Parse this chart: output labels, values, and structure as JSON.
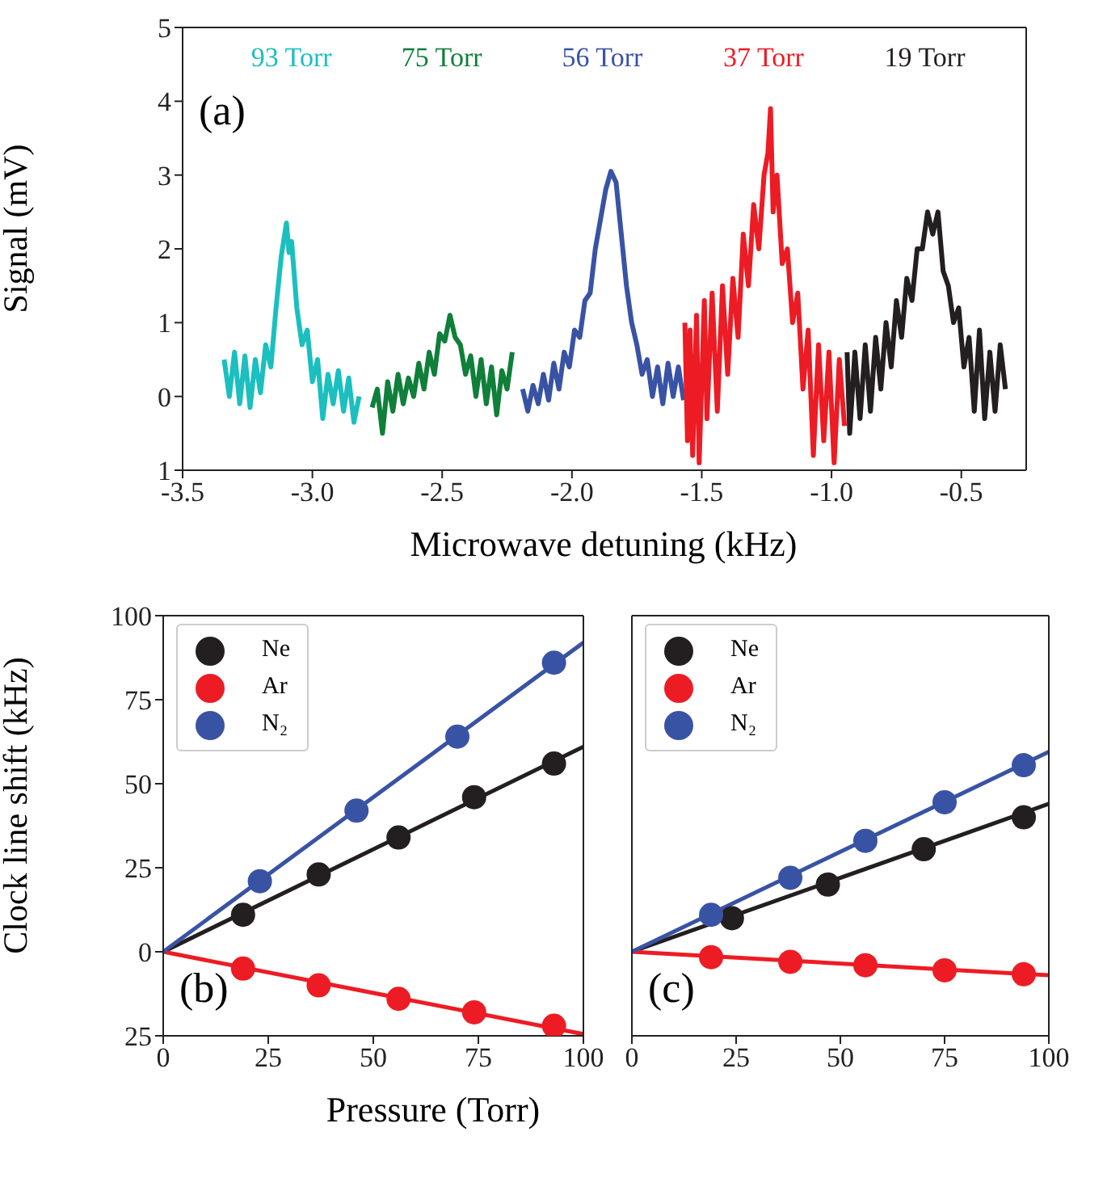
{
  "chart_data": [
    {
      "type": "line",
      "xlabel": "Microwave detuning (kHz)",
      "ylabel": "Signal (mV)",
      "annotations": [
        "(a)"
      ],
      "xlim": [
        -3.5,
        -0.25
      ],
      "xticks": [
        -3.5,
        {
          "value": -3,
          "label": "-3.0"
        },
        -2.5,
        {
          "value": -2,
          "label": "-2.0"
        },
        -1.5,
        {
          "value": -1,
          "label": "-1.0"
        },
        -0.5
      ],
      "ylim": [
        -1,
        5
      ],
      "yticks": [
        {
          "value": -1,
          "label": "1"
        },
        0,
        1,
        2,
        3,
        4,
        5
      ],
      "series": [
        {
          "name": "93 Torr",
          "color": "#1bbfbf",
          "x": [
            -3.34,
            -3.32,
            -3.3,
            -3.28,
            -3.26,
            -3.24,
            -3.22,
            -3.2,
            -3.18,
            -3.16,
            -3.14,
            -3.12,
            -3.1,
            -3.09,
            -3.08,
            -3.06,
            -3.04,
            -3.02,
            -3,
            -2.98,
            -2.96,
            -2.94,
            -2.92,
            -2.9,
            -2.88,
            -2.86,
            -2.84,
            -2.82
          ],
          "values": [
            0.5,
            0,
            0.6,
            -0.1,
            0.55,
            -0.15,
            0.5,
            0.05,
            0.7,
            0.4,
            1.2,
            1.9,
            2.35,
            1.95,
            2.1,
            1.2,
            0.7,
            0.9,
            0.2,
            0.5,
            -0.3,
            0.3,
            -0.1,
            0.35,
            -0.2,
            0.25,
            -0.35,
            0
          ]
        },
        {
          "name": "75 Torr",
          "color": "#0f7f3a",
          "x": [
            -2.77,
            -2.75,
            -2.73,
            -2.71,
            -2.69,
            -2.67,
            -2.65,
            -2.63,
            -2.61,
            -2.59,
            -2.57,
            -2.55,
            -2.53,
            -2.51,
            -2.49,
            -2.47,
            -2.45,
            -2.43,
            -2.41,
            -2.39,
            -2.37,
            -2.35,
            -2.33,
            -2.31,
            -2.29,
            -2.27,
            -2.25,
            -2.23
          ],
          "values": [
            -0.15,
            0.1,
            -0.5,
            0.2,
            -0.2,
            0.3,
            -0.1,
            0.25,
            0,
            0.45,
            0.1,
            0.6,
            0.3,
            0.85,
            0.75,
            1.1,
            0.8,
            0.7,
            0.3,
            0.55,
            0,
            0.5,
            -0.1,
            0.4,
            -0.25,
            0.35,
            0.1,
            0.6
          ]
        },
        {
          "name": "56 Torr",
          "color": "#3953a4",
          "x": [
            -2.19,
            -2.17,
            -2.15,
            -2.13,
            -2.11,
            -2.09,
            -2.07,
            -2.05,
            -2.03,
            -2.01,
            -1.99,
            -1.97,
            -1.95,
            -1.93,
            -1.91,
            -1.89,
            -1.87,
            -1.85,
            -1.83,
            -1.81,
            -1.79,
            -1.77,
            -1.75,
            -1.73,
            -1.71,
            -1.69,
            -1.67,
            -1.65,
            -1.63,
            -1.61,
            -1.59,
            -1.57
          ],
          "values": [
            0.1,
            -0.2,
            0.15,
            -0.1,
            0.3,
            -0.05,
            0.45,
            0.1,
            0.6,
            0.4,
            0.9,
            0.8,
            1.3,
            1.4,
            2,
            2.4,
            2.8,
            3.05,
            2.9,
            2.2,
            1.5,
            1,
            0.7,
            0.3,
            0.5,
            0,
            0.4,
            -0.1,
            0.45,
            0,
            0.4,
            -0.05
          ]
        },
        {
          "name": "37 Torr",
          "color": "#ed1c24",
          "x": [
            -1.565,
            -1.555,
            -1.545,
            -1.535,
            -1.52,
            -1.51,
            -1.49,
            -1.48,
            -1.46,
            -1.44,
            -1.42,
            -1.4,
            -1.38,
            -1.36,
            -1.34,
            -1.32,
            -1.3,
            -1.28,
            -1.26,
            -1.245,
            -1.235,
            -1.225,
            -1.21,
            -1.19,
            -1.17,
            -1.15,
            -1.13,
            -1.11,
            -1.09,
            -1.07,
            -1.05,
            -1.03,
            -1.01,
            -0.99,
            -0.97,
            -0.95
          ],
          "values": [
            1,
            -0.6,
            0.9,
            -0.8,
            1.1,
            -0.9,
            1.3,
            -0.3,
            1.4,
            -0.2,
            1.5,
            0.3,
            1.6,
            0.8,
            2.2,
            1.5,
            2.6,
            2,
            3,
            3.3,
            3.9,
            2.5,
            3,
            1.8,
            2,
            1,
            1.4,
            0.1,
            0.9,
            -0.8,
            0.7,
            -0.6,
            0.6,
            -0.9,
            0.5,
            -0.4
          ]
        },
        {
          "name": "19 Torr",
          "color": "#231f20",
          "x": [
            -0.94,
            -0.93,
            -0.91,
            -0.89,
            -0.87,
            -0.85,
            -0.83,
            -0.81,
            -0.79,
            -0.77,
            -0.75,
            -0.73,
            -0.71,
            -0.69,
            -0.67,
            -0.65,
            -0.63,
            -0.61,
            -0.59,
            -0.57,
            -0.55,
            -0.53,
            -0.51,
            -0.49,
            -0.47,
            -0.45,
            -0.43,
            -0.41,
            -0.39,
            -0.37,
            -0.35,
            -0.33
          ],
          "values": [
            0.6,
            -0.5,
            0.6,
            -0.3,
            0.7,
            -0.2,
            0.8,
            0.1,
            1,
            0.4,
            1.3,
            0.8,
            1.6,
            1.3,
            2,
            2,
            2.5,
            2.2,
            2.5,
            1.7,
            1.5,
            1,
            1.2,
            0.4,
            0.8,
            -0.2,
            0.9,
            -0.3,
            0.6,
            -0.2,
            0.7,
            0.1
          ]
        }
      ]
    },
    {
      "type": "scatter",
      "xlabel": "Pressure (Torr)",
      "ylabel": "Clock line shift (kHz)",
      "annotations": [
        "(b)"
      ],
      "xlim": [
        0,
        100
      ],
      "xticks": [
        0,
        25,
        50,
        75,
        100
      ],
      "ylim": [
        -25,
        100
      ],
      "yticks": [
        {
          "value": -25,
          "label": "25"
        },
        0,
        25,
        50,
        75,
        100
      ],
      "marker": "circle",
      "legend": "top left",
      "series": [
        {
          "name": "Ne",
          "color": "#231f20",
          "x": [
            19,
            37,
            56,
            74,
            93
          ],
          "values": [
            11,
            23,
            34,
            46,
            56
          ]
        },
        {
          "name": "Ar",
          "color": "#ed1c24",
          "x": [
            19,
            37,
            56,
            74,
            93
          ],
          "values": [
            -5,
            -10,
            -14,
            -18,
            -22
          ]
        },
        {
          "name": "N₂",
          "color": "#3953a4",
          "x": [
            23,
            46,
            70,
            93
          ],
          "values": [
            21,
            42,
            64,
            86
          ]
        },
        {
          "type": "line",
          "marker": "none",
          "color": "#231f20",
          "x": [
            0,
            100
          ],
          "values": [
            0,
            61
          ]
        },
        {
          "type": "line",
          "marker": "none",
          "color": "#ed1c24",
          "x": [
            0,
            100
          ],
          "values": [
            0,
            -24.5
          ]
        },
        {
          "type": "line",
          "marker": "none",
          "color": "#3953a4",
          "x": [
            0,
            100
          ],
          "values": [
            0,
            92
          ]
        }
      ]
    },
    {
      "type": "scatter",
      "annotations": [
        "(c)"
      ],
      "xlim": [
        0,
        100
      ],
      "xticks": [
        0,
        25,
        50,
        75,
        100
      ],
      "ylim": [
        -25,
        100
      ],
      "yticks": [
        -25,
        0,
        25,
        50,
        75,
        100
      ],
      "tick_labels": "x",
      "marker": "circle",
      "legend": "top left",
      "series": [
        {
          "name": "Ne",
          "color": "#231f20",
          "x": [
            24,
            47,
            70,
            94
          ],
          "values": [
            10,
            20,
            30.5,
            40
          ]
        },
        {
          "name": "Ar",
          "color": "#ed1c24",
          "x": [
            19,
            38,
            56,
            75,
            94
          ],
          "values": [
            -1.6,
            -3,
            -4,
            -5.5,
            -6.7
          ]
        },
        {
          "name": "N₂",
          "color": "#3953a4",
          "x": [
            19,
            38,
            56,
            75,
            94
          ],
          "values": [
            11,
            22,
            33,
            44.5,
            55.5
          ]
        },
        {
          "type": "line",
          "marker": "none",
          "color": "#231f20",
          "x": [
            0,
            100
          ],
          "values": [
            0,
            44
          ]
        },
        {
          "type": "line",
          "marker": "none",
          "color": "#ed1c24",
          "x": [
            0,
            100
          ],
          "values": [
            0,
            -7
          ]
        },
        {
          "type": "line",
          "marker": "none",
          "color": "#3953a4",
          "x": [
            0,
            100
          ],
          "values": [
            0,
            59.5
          ]
        }
      ]
    }
  ]
}
